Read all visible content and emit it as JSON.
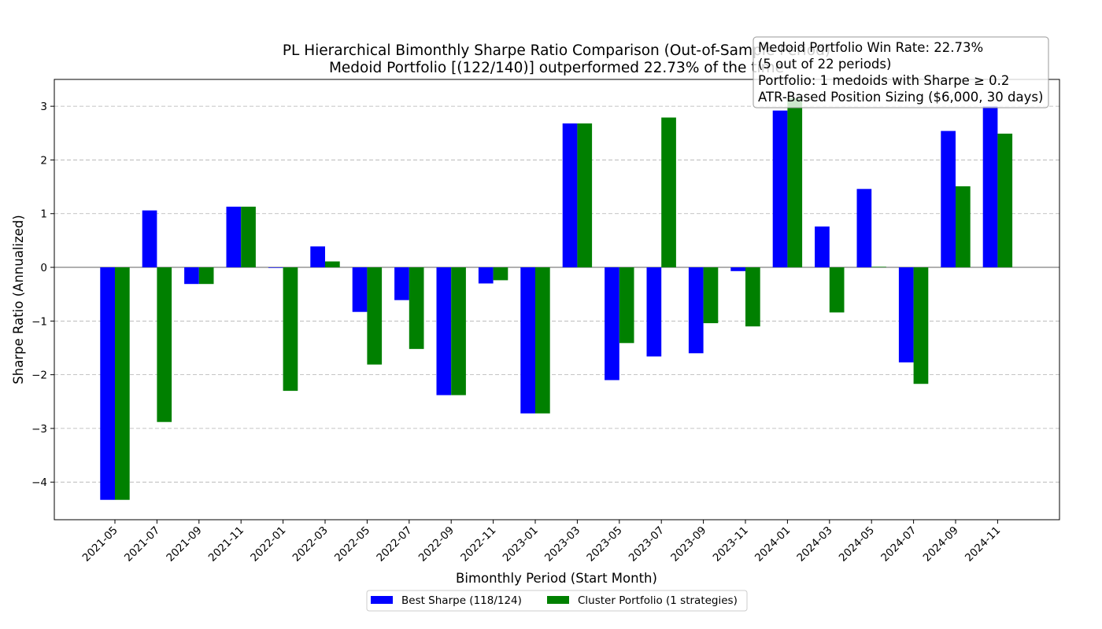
{
  "chart_data": {
    "type": "bar",
    "title_line1": "PL Hierarchical Bimonthly Sharpe Ratio Comparison (Out-of-Sample Period)",
    "title_line2": "Medoid Portfolio [(122/140)] outperformed 22.73% of the time",
    "xlabel": "Bimonthly Period (Start Month)",
    "ylabel": "Sharpe Ratio (Annualized)",
    "ylim": [
      -4.7,
      3.5
    ],
    "yticks": [
      -4,
      -3,
      -2,
      -1,
      0,
      1,
      2,
      3
    ],
    "ytick_labels": [
      "−4",
      "−3",
      "−2",
      "−1",
      "0",
      "1",
      "2",
      "3"
    ],
    "grid": "y-dashed",
    "categories": [
      "2021-05",
      "2021-07",
      "2021-09",
      "2021-11",
      "2022-01",
      "2022-03",
      "2022-05",
      "2022-07",
      "2022-09",
      "2022-11",
      "2023-01",
      "2023-03",
      "2023-05",
      "2023-07",
      "2023-09",
      "2023-11",
      "2024-01",
      "2024-03",
      "2024-05",
      "2024-07",
      "2024-09",
      "2024-11"
    ],
    "series": [
      {
        "name": "Best Sharpe (118/124)",
        "color": "#0000ff",
        "values": [
          -4.33,
          1.06,
          -0.31,
          1.13,
          -0.01,
          0.39,
          -0.83,
          -0.61,
          -2.38,
          -0.3,
          -2.72,
          2.68,
          -2.1,
          -1.66,
          -1.6,
          -0.07,
          2.92,
          0.76,
          1.46,
          -1.77,
          2.54,
          3.0
        ]
      },
      {
        "name": "Cluster Portfolio (1 strategies)",
        "color": "#008000",
        "values": [
          -4.33,
          -2.88,
          -0.31,
          1.13,
          -2.3,
          0.11,
          -1.81,
          -1.52,
          -2.38,
          -0.24,
          -2.72,
          2.68,
          -1.41,
          2.79,
          -1.04,
          -1.1,
          3.15,
          -0.84,
          0.01,
          -2.17,
          1.51,
          2.49
        ]
      }
    ],
    "legend_position": "bottom-center",
    "annotation": {
      "lines": [
        "Medoid Portfolio Win Rate: 22.73%",
        "(5 out of 22 periods)",
        "Portfolio: 1 medoids with Sharpe ≥ 0.2",
        "ATR-Based Position Sizing ($6,000, 30 days)"
      ],
      "position": "top-right"
    }
  }
}
